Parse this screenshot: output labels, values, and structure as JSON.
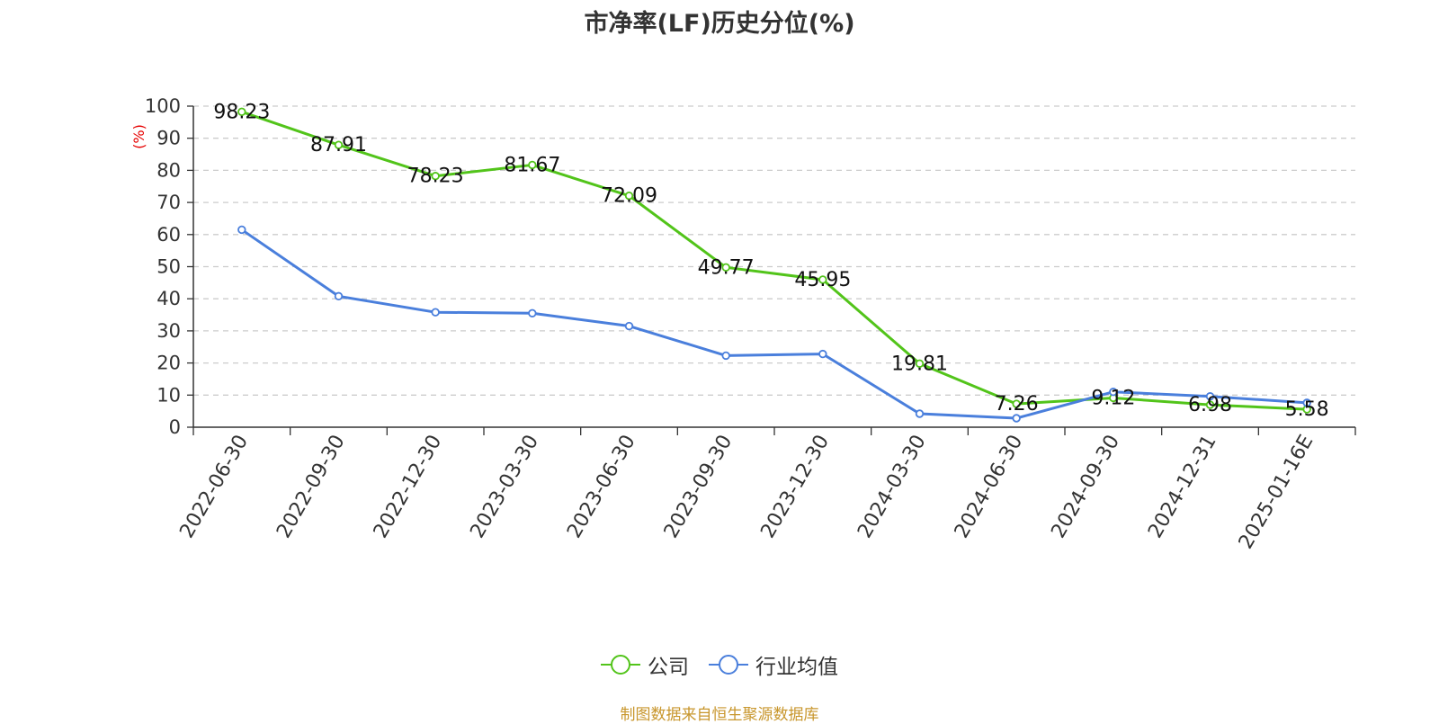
{
  "chart_data": {
    "type": "line",
    "title": "市净率(LF)历史分位(%)",
    "ylabel": "(%)",
    "ylim": [
      0,
      100
    ],
    "yticks": [
      0,
      10,
      20,
      30,
      40,
      50,
      60,
      70,
      80,
      90,
      100
    ],
    "grid": true,
    "legend_position": "bottom",
    "categories": [
      "2022-06-30",
      "2022-09-30",
      "2022-12-30",
      "2023-03-30",
      "2023-06-30",
      "2023-09-30",
      "2023-12-30",
      "2024-03-30",
      "2024-06-30",
      "2024-09-30",
      "2024-12-31",
      "2025-01-16E"
    ],
    "series": [
      {
        "name": "公司",
        "color": "#52c41a",
        "values": [
          98.23,
          87.91,
          78.23,
          81.67,
          72.09,
          49.77,
          45.95,
          19.81,
          7.26,
          9.12,
          6.98,
          5.58
        ],
        "labels": [
          "98.23",
          "87.91",
          "78.23",
          "81.67",
          "72.09",
          "49.77",
          "45.95",
          "19.81",
          "7.26",
          "9.12",
          "6.98",
          "5.58"
        ]
      },
      {
        "name": "行业均值",
        "color": "#4a7fdc",
        "values": [
          61.5,
          40.8,
          35.8,
          35.5,
          31.5,
          22.3,
          22.8,
          4.2,
          2.8,
          11.0,
          9.6,
          7.6
        ]
      }
    ],
    "source": "制图数据来自恒生聚源数据库"
  }
}
